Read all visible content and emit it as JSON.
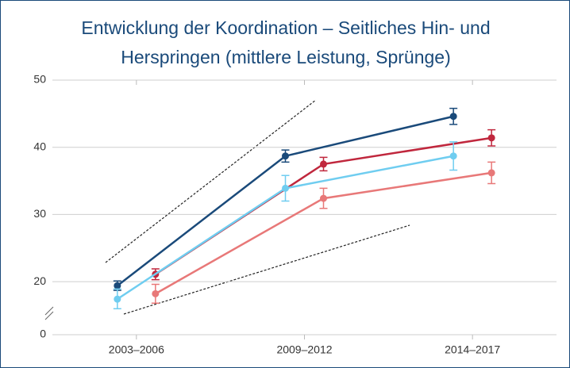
{
  "chart_data": {
    "type": "line",
    "title": "Entwicklung der Koordination – Seitliches Hin- und Herspringen (mittlere Leistung, Sprünge)",
    "categories": [
      "2003–2006",
      "2009–2012",
      "2014–2017"
    ],
    "series": [
      {
        "color": "#1a4a7a",
        "values": [
          19.4,
          38.7,
          44.6
        ],
        "errors": [
          0.7,
          0.9,
          1.2
        ]
      },
      {
        "color": "#c0273d",
        "values": [
          21.1,
          37.5,
          41.4
        ],
        "errors": [
          0.8,
          1.0,
          1.2
        ]
      },
      {
        "color": "#6fcdf0",
        "values": [
          17.4,
          33.9,
          38.7
        ],
        "errors": [
          1.5,
          1.9,
          2.1
        ]
      },
      {
        "color": "#e87878",
        "values": [
          18.2,
          32.4,
          36.2
        ],
        "errors": [
          1.4,
          1.5,
          1.6
        ]
      }
    ],
    "ylim": [
      0,
      50
    ],
    "ybreak": [
      0,
      16
    ],
    "yticks": [
      0,
      20,
      30,
      40,
      50
    ],
    "grid": true
  }
}
